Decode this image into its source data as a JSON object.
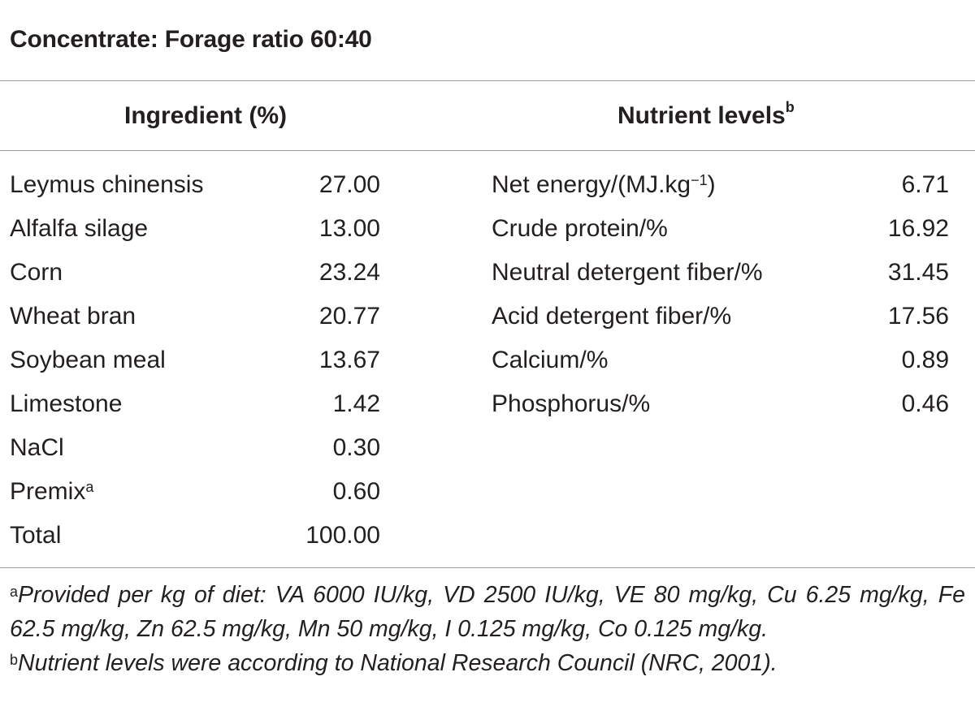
{
  "caption": "Concentrate: Forage ratio 60:40",
  "headers": {
    "ingredient": "Ingredient (%)",
    "nutrient": "Nutrient levels",
    "nutrient_sup": "b"
  },
  "ingredients": [
    {
      "name": "Leymus chinensis",
      "sup": "",
      "value": "27.00"
    },
    {
      "name": "Alfalfa silage",
      "sup": "",
      "value": "13.00"
    },
    {
      "name": "Corn",
      "sup": "",
      "value": "23.24"
    },
    {
      "name": "Wheat bran",
      "sup": "",
      "value": "20.77"
    },
    {
      "name": "Soybean meal",
      "sup": "",
      "value": "13.67"
    },
    {
      "name": "Limestone",
      "sup": "",
      "value": "1.42"
    },
    {
      "name": "NaCl",
      "sup": "",
      "value": "0.30"
    },
    {
      "name": "Premix",
      "sup": "a",
      "value": "0.60"
    },
    {
      "name": "Total",
      "sup": "",
      "value": "100.00"
    }
  ],
  "nutrients": [
    {
      "name": "Net energy/(MJ.kg",
      "sup": "−1",
      "suffix": ")",
      "value": "6.71"
    },
    {
      "name": "Crude protein/%",
      "sup": "",
      "suffix": "",
      "value": "16.92"
    },
    {
      "name": "Neutral detergent fiber/%",
      "sup": "",
      "suffix": "",
      "value": "31.45"
    },
    {
      "name": "Acid detergent fiber/%",
      "sup": "",
      "suffix": "",
      "value": "17.56"
    },
    {
      "name": "Calcium/%",
      "sup": "",
      "suffix": "",
      "value": "0.89"
    },
    {
      "name": "Phosphorus/%",
      "sup": "",
      "suffix": "",
      "value": "0.46"
    }
  ],
  "footnotes": {
    "a_mark": "a",
    "a_text": "Provided per kg of diet: VA 6000 IU/kg, VD 2500 IU/kg, VE 80 mg/kg, Cu 6.25 mg/kg, Fe 62.5 mg/kg, Zn 62.5 mg/kg, Mn 50 mg/kg, I 0.125 mg/kg, Co 0.125 mg/kg.",
    "b_mark": "b",
    "b_text": "Nutrient levels were according to National Research Council (NRC, 2001)."
  }
}
